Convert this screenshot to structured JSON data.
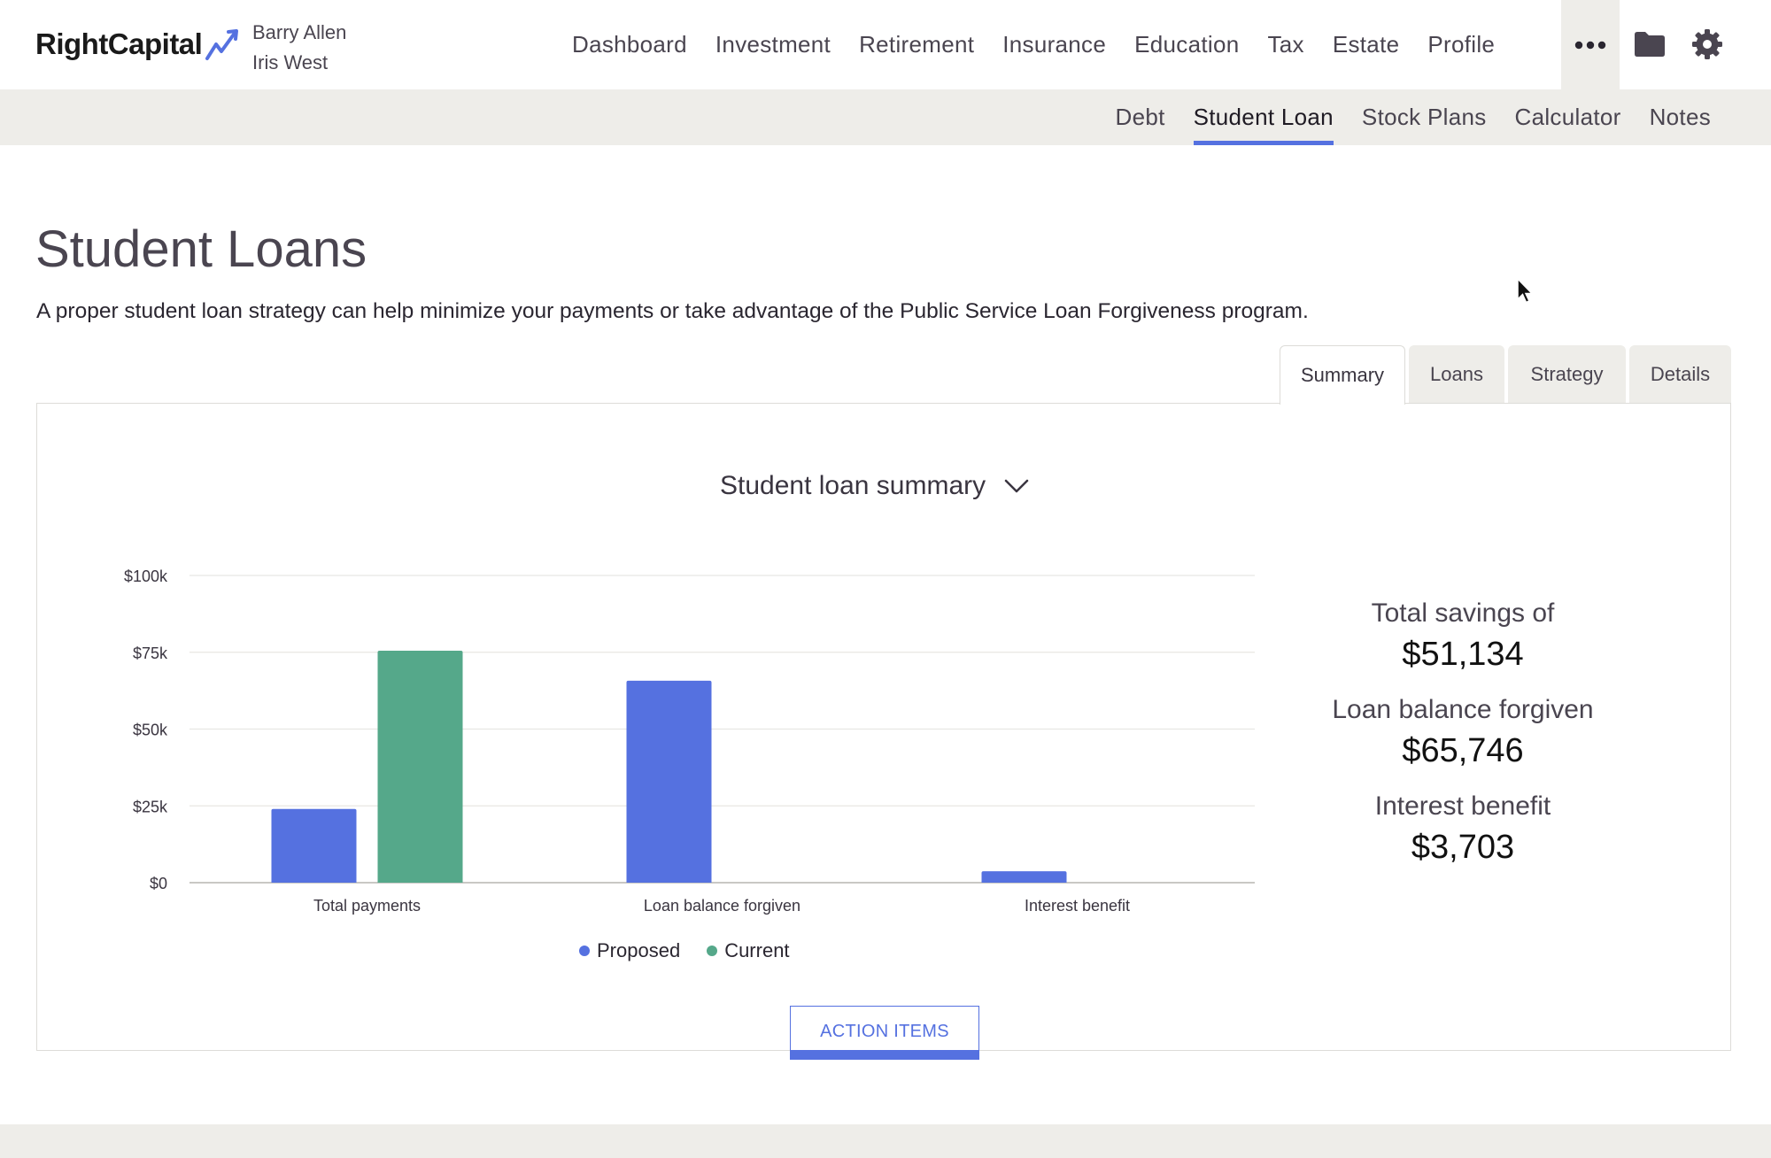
{
  "brand": {
    "name": "RightCapital",
    "accent": "#5571e0"
  },
  "clients": [
    "Barry Allen",
    "Iris West"
  ],
  "main_nav": [
    "Dashboard",
    "Investment",
    "Retirement",
    "Insurance",
    "Education",
    "Tax",
    "Estate",
    "Profile"
  ],
  "header_icons": {
    "more": "more-dots-icon",
    "folder": "folder-icon",
    "settings": "gear-icon"
  },
  "sub_nav": {
    "items": [
      "Debt",
      "Student Loan",
      "Stock Plans",
      "Calculator",
      "Notes"
    ],
    "active": "Student Loan"
  },
  "page": {
    "title": "Student Loans",
    "description": "A proper student loan strategy can help minimize your payments or take advantage of the Public Service Loan Forgiveness program."
  },
  "tabs": {
    "items": [
      "Summary",
      "Loans",
      "Strategy",
      "Details"
    ],
    "active": "Summary"
  },
  "chart_header": {
    "title": "Student loan summary"
  },
  "chart_data": {
    "type": "bar",
    "categories": [
      "Total payments",
      "Loan balance forgiven",
      "Interest benefit"
    ],
    "series": [
      {
        "name": "Proposed",
        "color": "#5571e0",
        "values": [
          24000,
          65746,
          3703
        ]
      },
      {
        "name": "Current",
        "color": "#55a88a",
        "values": [
          75500,
          0,
          0
        ]
      }
    ],
    "yticks": [
      "$0",
      "$25k",
      "$50k",
      "$75k",
      "$100k"
    ],
    "ylim": [
      0,
      100000
    ],
    "grid": true,
    "legend": "bottom-center"
  },
  "summary": {
    "total_savings_label": "Total savings of",
    "total_savings_value": "$51,134",
    "forgiven_label": "Loan balance forgiven",
    "forgiven_value": "$65,746",
    "interest_label": "Interest benefit",
    "interest_value": "$3,703"
  },
  "action_button": {
    "label": "ACTION ITEMS"
  }
}
